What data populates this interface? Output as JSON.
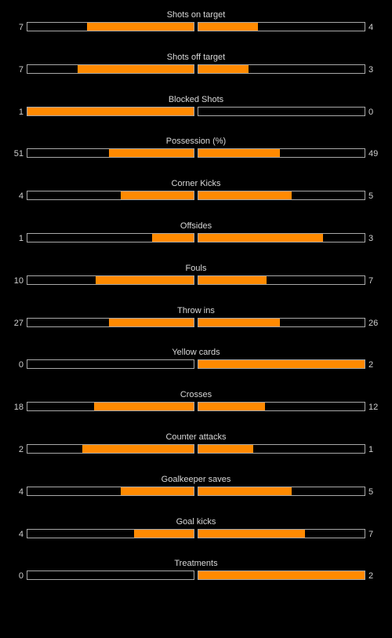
{
  "colors": {
    "background": "#000000",
    "bar_fill": "#ff8a00",
    "bar_border": "#a8a8a8",
    "text": "#d8d8d8"
  },
  "stats": [
    {
      "label": "Shots on target",
      "home": "7",
      "away": "4",
      "home_fill": 0.64,
      "away_fill": 0.36
    },
    {
      "label": "Shots off target",
      "home": "7",
      "away": "3",
      "home_fill": 0.7,
      "away_fill": 0.3
    },
    {
      "label": "Blocked Shots",
      "home": "1",
      "away": "0",
      "home_fill": 1.0,
      "away_fill": 0.0
    },
    {
      "label": "Possession (%)",
      "home": "51",
      "away": "49",
      "home_fill": 0.51,
      "away_fill": 0.49
    },
    {
      "label": "Corner Kicks",
      "home": "4",
      "away": "5",
      "home_fill": 0.44,
      "away_fill": 0.56
    },
    {
      "label": "Offsides",
      "home": "1",
      "away": "3",
      "home_fill": 0.25,
      "away_fill": 0.75
    },
    {
      "label": "Fouls",
      "home": "10",
      "away": "7",
      "home_fill": 0.59,
      "away_fill": 0.41
    },
    {
      "label": "Throw ins",
      "home": "27",
      "away": "26",
      "home_fill": 0.51,
      "away_fill": 0.49
    },
    {
      "label": "Yellow cards",
      "home": "0",
      "away": "2",
      "home_fill": 0.0,
      "away_fill": 1.0
    },
    {
      "label": "Crosses",
      "home": "18",
      "away": "12",
      "home_fill": 0.6,
      "away_fill": 0.4
    },
    {
      "label": "Counter attacks",
      "home": "2",
      "away": "1",
      "home_fill": 0.67,
      "away_fill": 0.33
    },
    {
      "label": "Goalkeeper saves",
      "home": "4",
      "away": "5",
      "home_fill": 0.44,
      "away_fill": 0.56
    },
    {
      "label": "Goal kicks",
      "home": "4",
      "away": "7",
      "home_fill": 0.36,
      "away_fill": 0.64
    },
    {
      "label": "Treatments",
      "home": "0",
      "away": "2",
      "home_fill": 0.0,
      "away_fill": 1.0
    }
  ]
}
